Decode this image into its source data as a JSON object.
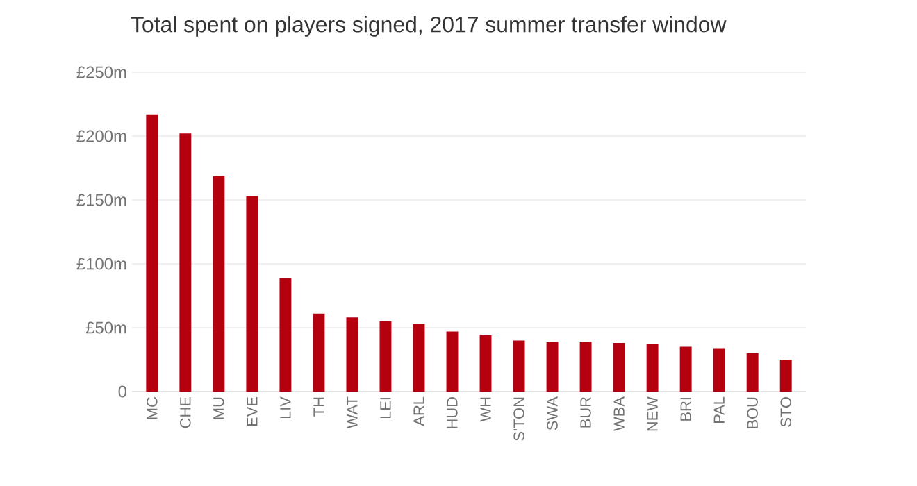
{
  "chart_data": {
    "type": "bar",
    "title": "Total spent on players signed, 2017 summer transfer window",
    "categories": [
      "MC",
      "CHE",
      "MU",
      "EVE",
      "LIV",
      "TH",
      "WAT",
      "LEI",
      "ARL",
      "HUD",
      "WH",
      "S'TON",
      "SWA",
      "BUR",
      "WBA",
      "NEW",
      "BRI",
      "PAL",
      "BOU",
      "STO"
    ],
    "values": [
      217,
      202,
      169,
      153,
      89,
      61,
      58,
      55,
      53,
      47,
      44,
      40,
      39,
      39,
      38,
      37,
      35,
      34,
      30,
      25
    ],
    "color": "#b5000f",
    "ylim": [
      0,
      250
    ],
    "yticks": [
      {
        "value": 0,
        "label": "0"
      },
      {
        "value": 50,
        "label": "£50m"
      },
      {
        "value": 100,
        "label": "£100m"
      },
      {
        "value": 150,
        "label": "£150m"
      },
      {
        "value": 200,
        "label": "£200m"
      },
      {
        "value": 250,
        "label": "£250m"
      }
    ],
    "grid": "y"
  }
}
